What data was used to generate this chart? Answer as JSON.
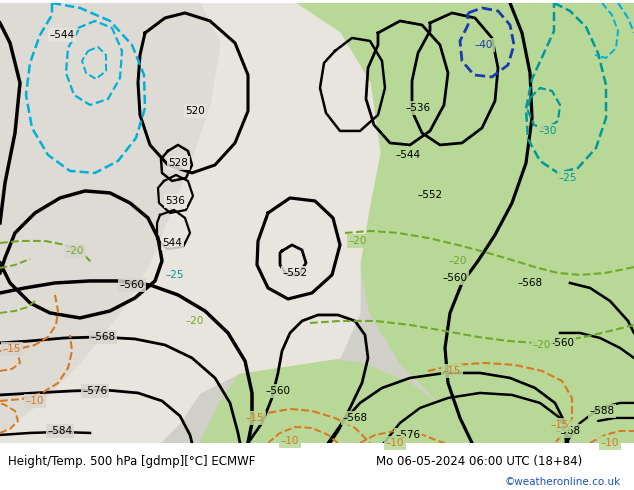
{
  "title_left": "Height/Temp. 500 hPa [gdmp][°C] ECMWF",
  "title_right": "Mo 06-05-2024 06:00 UTC (18+84)",
  "credit": "©weatheronline.co.uk",
  "bg_color": "#d0cfc8",
  "map_green": "#b8d898",
  "map_grey": "#c8c4be",
  "map_white": "#e8e4de",
  "black": "#000000",
  "cyan": "#00b0d8",
  "teal": "#009898",
  "blue": "#1a3ab0",
  "green_dash": "#70a828",
  "orange_dash": "#d87820",
  "white_bar": "#ffffff"
}
